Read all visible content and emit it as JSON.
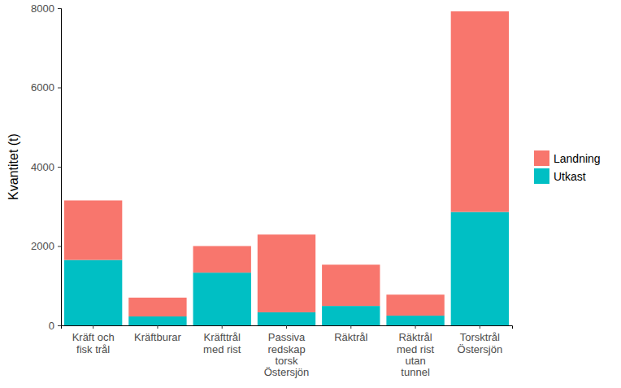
{
  "chart_data": {
    "type": "bar",
    "stacked": true,
    "legend": "right",
    "grid": false,
    "y_label": "Kvantitet (t)",
    "categories": [
      "Kräft och fisk trål",
      "Kräftburar",
      "Kräfttrål med rist",
      "Passiva redskap torsk Östersjön",
      "Räktrål",
      "Räktrål med rist utan tunnel",
      "Torsktrål Östersjön"
    ],
    "series": [
      {
        "name": "Utkast",
        "color": "#00BFC4",
        "values": [
          1650,
          225,
          1330,
          330,
          490,
          245,
          2860
        ]
      },
      {
        "name": "Landning",
        "color": "#F8766D",
        "values": [
          1500,
          475,
          670,
          1960,
          1040,
          530,
          5060
        ]
      }
    ],
    "ylim": [
      0,
      8000
    ],
    "yticks": [
      0,
      2000,
      4000,
      6000,
      8000
    ]
  }
}
